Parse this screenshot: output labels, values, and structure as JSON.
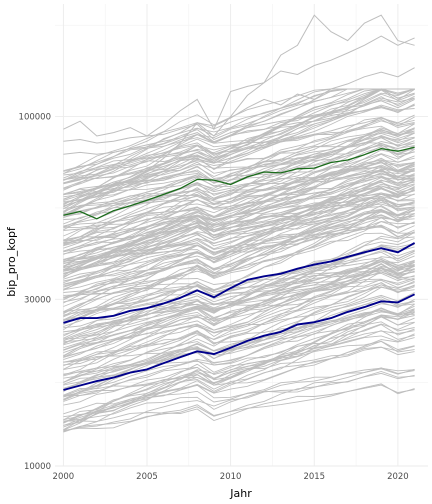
{
  "chart_data": {
    "type": "line",
    "title": "",
    "xlabel": "Jahr",
    "ylabel": "bip_pro_kopf",
    "y_scale": "log10",
    "xlim": [
      1999.5,
      2021.8
    ],
    "ylim": [
      10000,
      210000
    ],
    "x_ticks": [
      2000,
      2005,
      2010,
      2015,
      2020
    ],
    "y_ticks": [
      10000,
      30000,
      100000
    ],
    "y_tick_labels": [
      "10000",
      "30000",
      "100000"
    ],
    "grid": true,
    "legend": "none",
    "years": [
      2000,
      2001,
      2002,
      2003,
      2004,
      2005,
      2006,
      2007,
      2008,
      2009,
      2010,
      2011,
      2012,
      2013,
      2014,
      2015,
      2016,
      2017,
      2018,
      2019,
      2020,
      2021
    ],
    "highlight_series": [
      {
        "color": "#1a6b1a",
        "values": [
          52200,
          53500,
          51000,
          53800,
          55600,
          57600,
          59900,
          62300,
          66100,
          65800,
          63900,
          67200,
          69400,
          69000,
          70900,
          71200,
          73900,
          75100,
          77800,
          81000,
          79600,
          81700
        ]
      },
      {
        "color": "#00008b",
        "values": [
          25700,
          26500,
          26500,
          26900,
          27800,
          28300,
          29200,
          30300,
          31800,
          30400,
          32300,
          34100,
          34900,
          35500,
          36700,
          37700,
          38500,
          39700,
          40900,
          42000,
          40900,
          43500
        ]
      },
      {
        "color": "#00008b",
        "values": [
          16500,
          17000,
          17500,
          17900,
          18500,
          18900,
          19700,
          20500,
          21300,
          20900,
          21800,
          22800,
          23600,
          24200,
          25400,
          25800,
          26500,
          27600,
          28500,
          29600,
          29400,
          31000
        ]
      }
    ],
    "background_series": {
      "color": "#bebebe",
      "note_count": 200,
      "series": [
        {
          "values": [
            92000,
            97000,
            88000,
            90000,
            93000,
            88000,
            95000,
            104000,
            112000,
            92000,
            118000,
            122000,
            125000,
            135000,
            132000,
            140000,
            145000,
            152000,
            160000,
            170000,
            160000,
            168000
          ]
        },
        {
          "values": [
            60000,
            62000,
            61000,
            63000,
            66000,
            70000,
            76000,
            84000,
            96000,
            88000,
            100000,
            115000,
            125000,
            150000,
            160000,
            195000,
            175000,
            165000,
            185000,
            195000,
            165000,
            160000
          ]
        },
        {
          "values": [
            70000,
            72000,
            73000,
            76000,
            78000,
            82000,
            86000,
            90000,
            96000,
            94000,
            99000,
            106000,
            112000,
            108000,
            116000,
            112000,
            120000,
            124000,
            130000,
            134000,
            130000,
            138000
          ]
        },
        {
          "values": [
            85000,
            86000,
            84000,
            85000,
            87000,
            88000,
            89000,
            92000,
            95000,
            86000,
            90000,
            93000,
            95000,
            97000,
            99000,
            101000,
            103000,
            106000,
            108000,
            111000,
            106000,
            112000
          ]
        },
        {
          "values": [
            78000,
            79000,
            78000,
            79000,
            81000,
            83000,
            85000,
            87000,
            90000,
            84000,
            88000,
            91000,
            92000,
            94000,
            96000,
            97000,
            99000,
            102000,
            104000,
            106000,
            103000,
            108000
          ]
        },
        {
          "values": [
            66000,
            67000,
            66500,
            67500,
            69000,
            71000,
            73000,
            76000,
            79000,
            75000,
            78000,
            81000,
            83000,
            85000,
            87000,
            89000,
            91000,
            94000,
            96000,
            99000,
            96000,
            101000
          ]
        }
      ]
    }
  }
}
